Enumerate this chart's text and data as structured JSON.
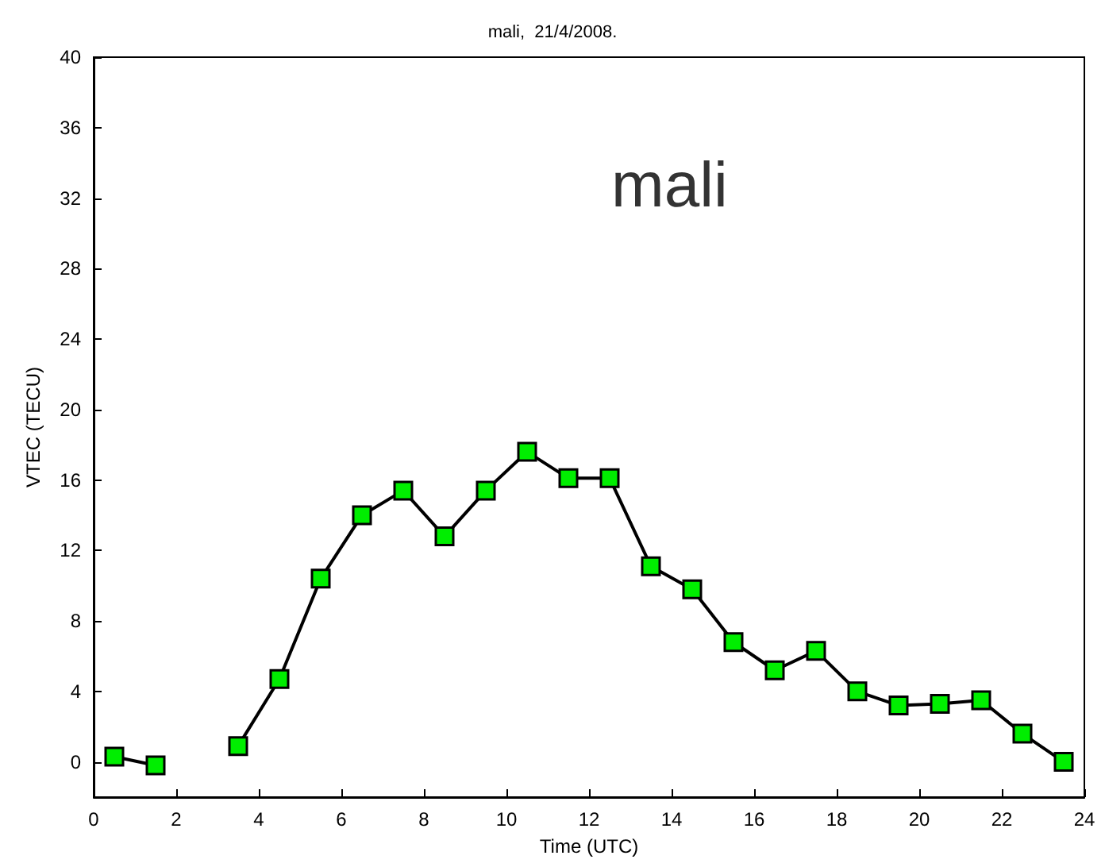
{
  "chart_data": {
    "type": "line",
    "title": "mali,  21/4/2008.",
    "xlabel": "Time (UTC)",
    "ylabel": "VTEC (TECU)",
    "annotations": [
      "mali"
    ],
    "x": [
      0.5,
      1.5,
      2.5,
      3.5,
      4.5,
      5.5,
      6.5,
      7.5,
      8.5,
      9.5,
      10.5,
      11.5,
      12.5,
      13.5,
      14.5,
      15.5,
      16.5,
      17.5,
      18.5,
      19.5,
      20.5,
      21.5,
      22.5,
      23.5
    ],
    "series": [
      {
        "color": "#00ee00",
        "values": [
          0.3,
          -0.2,
          null,
          0.9,
          4.7,
          10.4,
          14.0,
          15.4,
          12.8,
          15.4,
          17.6,
          16.1,
          16.1,
          11.1,
          9.8,
          6.8,
          5.2,
          6.3,
          4.0,
          3.2,
          3.3,
          3.5,
          1.6,
          0.0
        ]
      }
    ],
    "xlim": [
      0,
      24
    ],
    "xticks": [
      0,
      2,
      4,
      6,
      8,
      10,
      12,
      14,
      16,
      18,
      20,
      22,
      24
    ],
    "ylim": [
      -2,
      40
    ],
    "yticks": [
      0,
      4,
      8,
      12,
      16,
      20,
      24,
      28,
      32,
      36,
      40
    ],
    "marker": "square",
    "line_style": "solid",
    "grid": false
  }
}
